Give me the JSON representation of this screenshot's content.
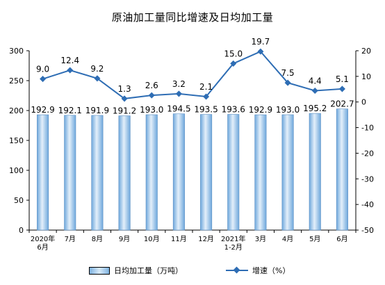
{
  "title": "原油加工量同比增速及日均加工量",
  "colors": {
    "bar_fill": "#d0e4f5",
    "bar_edge": "#6fa8dc",
    "line": "#2e6db4",
    "axis": "#000000",
    "grid": "#d9d9d9"
  },
  "legend": {
    "bar_label": "日均加工量（万吨）",
    "line_label": "增速（%）"
  },
  "chart_data": {
    "type": "bar+line",
    "title": "原油加工量同比增速及日均加工量",
    "categories": [
      [
        "2020年",
        "6月"
      ],
      [
        "7月"
      ],
      [
        "8月"
      ],
      [
        "9月"
      ],
      [
        "10月"
      ],
      [
        "11月"
      ],
      [
        "12月"
      ],
      [
        "2021年",
        "1-2月"
      ],
      [
        "3月"
      ],
      [
        "4月"
      ],
      [
        "5月"
      ],
      [
        "6月"
      ]
    ],
    "series": [
      {
        "name": "日均加工量（万吨）",
        "type": "bar",
        "axis": "left",
        "values": [
          192.9,
          192.1,
          191.9,
          191.2,
          193.0,
          194.5,
          193.5,
          193.6,
          192.9,
          193.0,
          195.2,
          202.7
        ],
        "labels": [
          "192.9",
          "192.1",
          "191.9",
          "191.2",
          "193.0",
          "194.5",
          "193.5",
          "193.6",
          "192.9",
          "193.0",
          "195.2",
          "202.7"
        ]
      },
      {
        "name": "增速（%）",
        "type": "line",
        "axis": "right",
        "values": [
          9.0,
          12.4,
          9.2,
          1.3,
          2.6,
          3.2,
          2.1,
          15.0,
          19.7,
          7.5,
          4.4,
          5.1
        ],
        "labels": [
          "9.0",
          "12.4",
          "9.2",
          "1.3",
          "2.6",
          "3.2",
          "2.1",
          "15.0",
          "19.7",
          "7.5",
          "4.4",
          "5.1"
        ]
      }
    ],
    "y_left": {
      "min": 0,
      "max": 300,
      "ticks": [
        0,
        50,
        100,
        150,
        200,
        250,
        300
      ]
    },
    "y_right": {
      "min": -50,
      "max": 20,
      "ticks": [
        -50,
        -40,
        -30,
        -20,
        -10,
        0,
        10,
        20
      ]
    },
    "grid": false,
    "legend_position": "bottom"
  }
}
